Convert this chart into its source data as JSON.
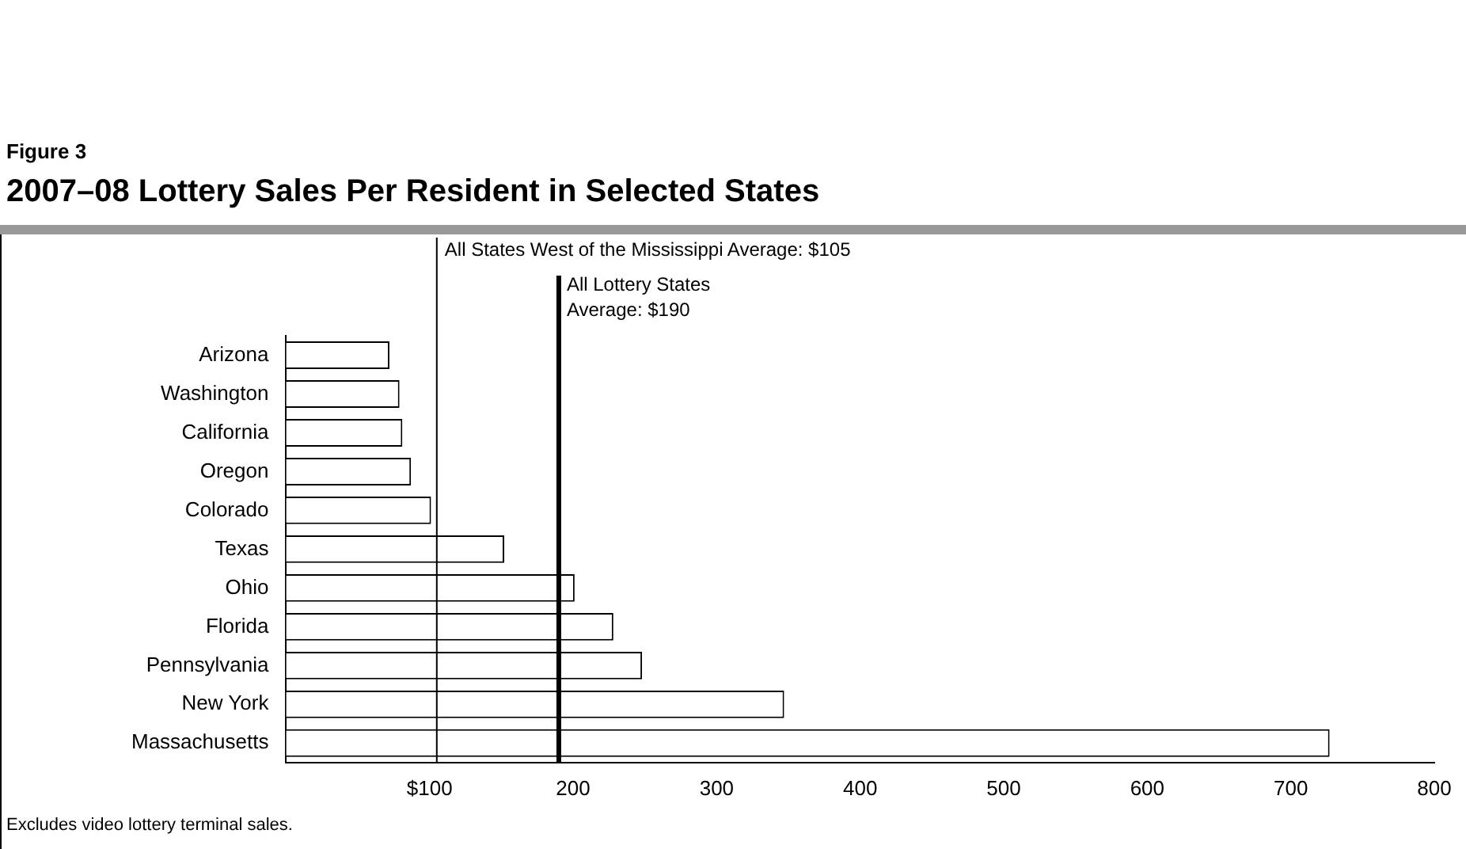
{
  "chart_data": {
    "type": "bar",
    "orientation": "horizontal",
    "subtitle": "Figure 3",
    "title": "2007–08 Lottery Sales Per Resident in Selected States",
    "categories": [
      "Arizona",
      "Washington",
      "California",
      "Oregon",
      "Colorado",
      "Texas",
      "Ohio",
      "Florida",
      "Pennsylvania",
      "New York",
      "Massachusetts"
    ],
    "values": [
      72,
      79,
      81,
      87,
      101,
      152,
      201,
      228,
      248,
      347,
      727
    ],
    "color": "#ffffff",
    "xlim": [
      0,
      800
    ],
    "xticks": [
      {
        "value": 100,
        "label": "$100"
      },
      200,
      300,
      400,
      500,
      600,
      700,
      800
    ],
    "grid": false,
    "legend": false,
    "ref_lines": [
      {
        "axis": "x",
        "value": 105,
        "label": "All States West of the Mississippi Average: $105",
        "color": "#000000"
      },
      {
        "axis": "x",
        "value": 190,
        "label": "All Lottery States Average: $190",
        "color": "#000000"
      }
    ],
    "annotations": [
      "Excludes video lottery terminal sales."
    ]
  }
}
